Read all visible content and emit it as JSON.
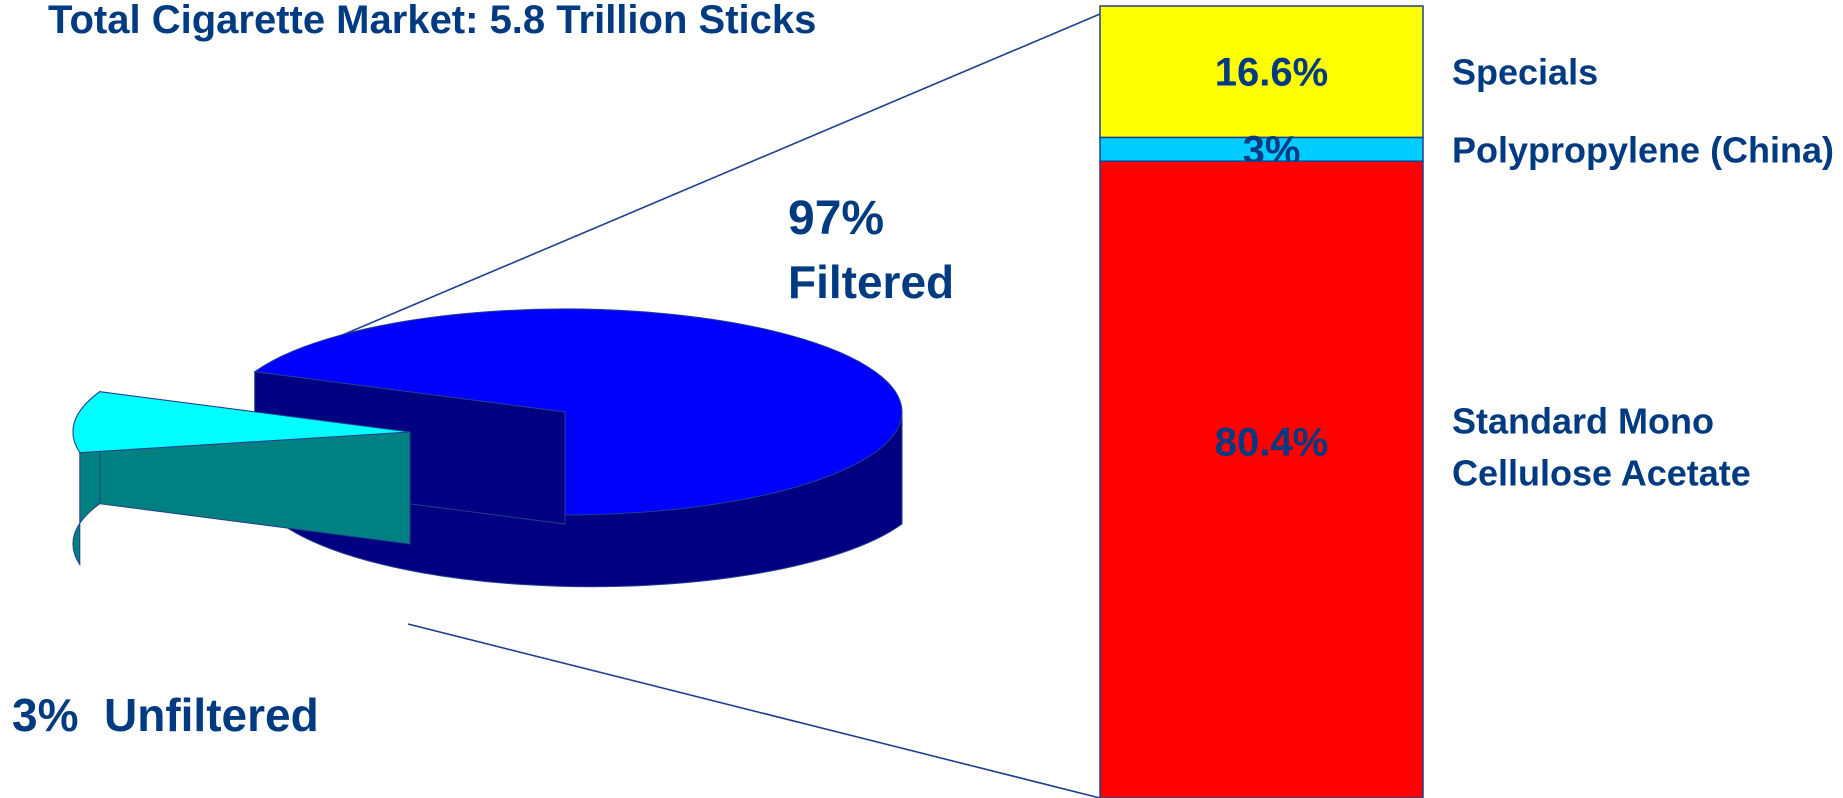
{
  "chart_data": [
    {
      "type": "pie",
      "title": "Total Cigarette Market: 5.8 Trillion Sticks",
      "slices": [
        {
          "label": "Filtered",
          "value_label": "97%",
          "value": 97,
          "color": "#0000FF",
          "side_color": "#000080"
        },
        {
          "label": "Unfiltered",
          "value_label": "3%",
          "value": 3,
          "color": "#00FFFF",
          "side_color": "#008080"
        }
      ]
    },
    {
      "type": "bar",
      "stacked": true,
      "segments": [
        {
          "name": "Specials",
          "value_label": "16.6%",
          "value": 16.6,
          "color": "#FFFF00"
        },
        {
          "name": "Polypropylene (China)",
          "value_label": "3%",
          "value": 3,
          "color": "#00CCFF"
        },
        {
          "name": "Standard Mono",
          "name_line2": "Cellulose Acetate",
          "value_label": "80.4%",
          "value": 80.4,
          "color": "#FF0000"
        }
      ]
    }
  ],
  "colors": {
    "text": "#003A80",
    "leader": "#1F3F8F",
    "outline": "#1F3F8F"
  }
}
